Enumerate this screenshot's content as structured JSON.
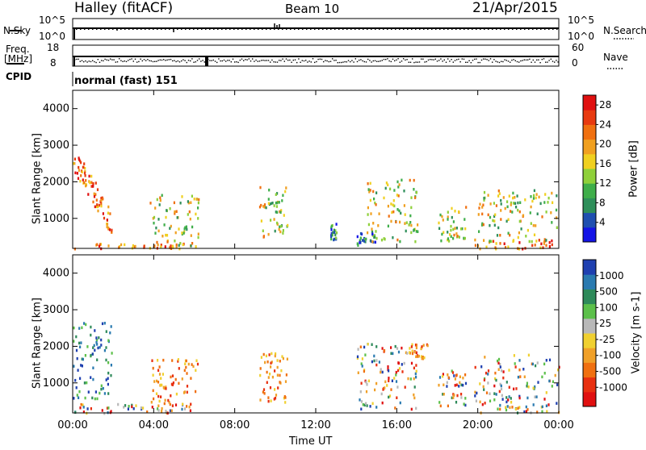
{
  "header": {
    "station": "Halley (fitACF)",
    "beam": "Beam 10",
    "date": "21/Apr/2015"
  },
  "labels": {
    "nsky": "N.Sky",
    "nsearch": "N.Search",
    "freq_top": "Freq.",
    "freq_unit": "[MHz]",
    "nave": "Nave",
    "cpid": "CPID",
    "cpid_value": "normal (fast) 151",
    "time_axis": "Time UT"
  },
  "chart_data": [
    {
      "type": "line",
      "panel": "noise",
      "left_axis_ticks": [
        "10^5",
        "10^0"
      ],
      "right_axis_ticks": [
        "10^5",
        "10^0"
      ],
      "series": [
        {
          "name": "N.Sky"
        },
        {
          "name": "N.Search"
        }
      ],
      "note_values": "noise level nearly constant throughout the day"
    },
    {
      "type": "scatter",
      "panel": "frequency-nave",
      "left_axis_ticks": [
        "18",
        "8"
      ],
      "right_axis_ticks": [
        "60",
        "0"
      ],
      "series": [
        {
          "name": "Freq."
        },
        {
          "name": "Nave"
        }
      ]
    },
    {
      "type": "heatmap",
      "panel": "power",
      "ylabel": "Slant Range [km]",
      "xlabel": "Time UT",
      "xlim": [
        0,
        24
      ],
      "ylim": [
        180,
        4500
      ],
      "x_ticks": [
        "00:00",
        "04:00",
        "08:00",
        "12:00",
        "16:00",
        "20:00",
        "00:00"
      ],
      "y_ticks": [
        1000,
        2000,
        3000,
        4000
      ],
      "colorbar_label": "Power [dB]",
      "colorbar_ticks": [
        4,
        8,
        12,
        16,
        20,
        24,
        28
      ],
      "colorbar_colors": [
        "#1414e6",
        "#1f4fb0",
        "#2f8f5a",
        "#3fae4a",
        "#8fd03a",
        "#f0d020",
        "#f0a020",
        "#f07010",
        "#e83a10",
        "#e01010"
      ],
      "echo_regions": [
        {
          "t0": 0.0,
          "t1": 1.9,
          "r0": 600,
          "r1": 2700,
          "level": "high",
          "trend": "descending"
        },
        {
          "t0": 0.0,
          "t1": 5.8,
          "r0": 200,
          "r1": 350,
          "level": "high"
        },
        {
          "t0": 3.8,
          "t1": 6.2,
          "r0": 250,
          "r1": 1700,
          "level": "medium"
        },
        {
          "t0": 9.2,
          "t1": 10.6,
          "r0": 500,
          "r1": 1900,
          "level": "medium"
        },
        {
          "t0": 12.7,
          "t1": 13.0,
          "r0": 400,
          "r1": 900,
          "level": "low"
        },
        {
          "t0": 14.0,
          "t1": 15.0,
          "r0": 300,
          "r1": 700,
          "level": "low"
        },
        {
          "t0": 14.5,
          "t1": 17.0,
          "r0": 400,
          "r1": 2100,
          "level": "medium"
        },
        {
          "t0": 18.0,
          "t1": 19.4,
          "r0": 400,
          "r1": 1400,
          "level": "medium"
        },
        {
          "t0": 19.8,
          "t1": 24.0,
          "r0": 200,
          "r1": 450,
          "level": "high"
        },
        {
          "t0": 20.0,
          "t1": 24.0,
          "r0": 400,
          "r1": 1800,
          "level": "medium"
        }
      ]
    },
    {
      "type": "heatmap",
      "panel": "velocity",
      "ylabel": "Slant Range [km]",
      "xlabel": "Time UT",
      "xlim": [
        0,
        24
      ],
      "ylim": [
        180,
        4500
      ],
      "x_ticks": [
        "00:00",
        "04:00",
        "08:00",
        "12:00",
        "16:00",
        "20:00",
        "00:00"
      ],
      "y_ticks": [
        1000,
        2000,
        3000,
        4000
      ],
      "colorbar_label": "Velocity [m s-1]",
      "colorbar_ticks": [
        "1000",
        "500",
        "100",
        "25",
        "-25",
        "-100",
        "-500",
        "-1000"
      ],
      "colorbar_colors": [
        "#1f40b0",
        "#2a7ab0",
        "#2e8a5a",
        "#5cc04a",
        "#b8b8b8",
        "#f0d030",
        "#f0a028",
        "#f07010",
        "#e83010",
        "#e01010"
      ],
      "echo_regions": [
        {
          "t0": 0.0,
          "t1": 1.9,
          "r0": 600,
          "r1": 2700,
          "sign": "positive"
        },
        {
          "t0": 0.0,
          "t1": 5.8,
          "r0": 200,
          "r1": 450,
          "sign": "mixed"
        },
        {
          "t0": 3.8,
          "t1": 6.2,
          "r0": 250,
          "r1": 1700,
          "sign": "negative"
        },
        {
          "t0": 9.2,
          "t1": 10.6,
          "r0": 500,
          "r1": 1900,
          "sign": "negative"
        },
        {
          "t0": 14.0,
          "t1": 17.0,
          "r0": 300,
          "r1": 2100,
          "sign": "mixed"
        },
        {
          "t0": 16.5,
          "t1": 17.5,
          "r0": 1700,
          "r1": 2100,
          "sign": "negative"
        },
        {
          "t0": 18.0,
          "t1": 19.4,
          "r0": 400,
          "r1": 1400,
          "sign": "mixed"
        },
        {
          "t0": 19.8,
          "t1": 24.0,
          "r0": 200,
          "r1": 1800,
          "sign": "mixed"
        }
      ]
    }
  ]
}
